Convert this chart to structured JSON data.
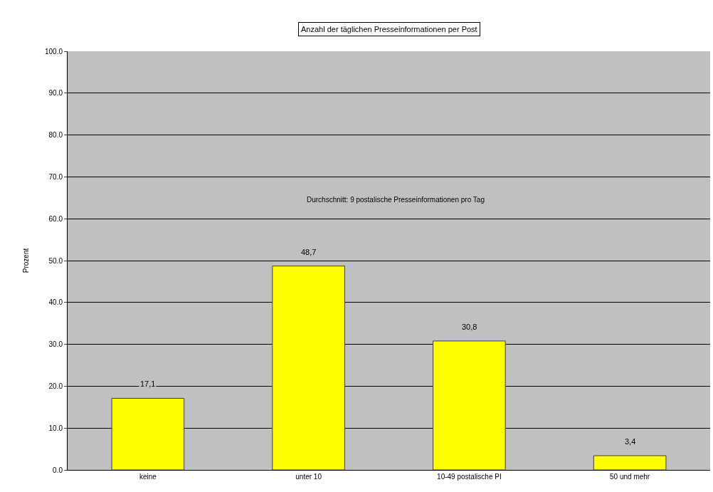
{
  "chart_data": {
    "type": "bar",
    "title": "Anzahl der täglichen Presseinformationen per Post",
    "ylabel": "Prozent",
    "categories": [
      "keine",
      "unter 10",
      "10-49 postalische PI",
      "50 und mehr"
    ],
    "values": [
      17.1,
      48.7,
      30.8,
      3.4
    ],
    "value_labels": [
      "17,1",
      "48,7",
      "30,8",
      "3,4"
    ],
    "color": "#ffff00",
    "ylim": [
      0,
      100
    ],
    "yticks": [
      {
        "value": 0,
        "label": "0.0"
      },
      {
        "value": 10,
        "label": "10.0"
      },
      {
        "value": 20,
        "label": "20.0"
      },
      {
        "value": 30,
        "label": "30.0"
      },
      {
        "value": 40,
        "label": "40.0"
      },
      {
        "value": 50,
        "label": "50.0"
      },
      {
        "value": 60,
        "label": "60.0"
      },
      {
        "value": 70,
        "label": "70.0"
      },
      {
        "value": 80,
        "label": "80.0"
      },
      {
        "value": 90,
        "label": "90.0"
      },
      {
        "value": 100,
        "label": "100.0"
      }
    ],
    "grid": "y",
    "annotations": [
      "Durchschnitt: 9 postalische Presseinformationen pro Tag"
    ]
  }
}
